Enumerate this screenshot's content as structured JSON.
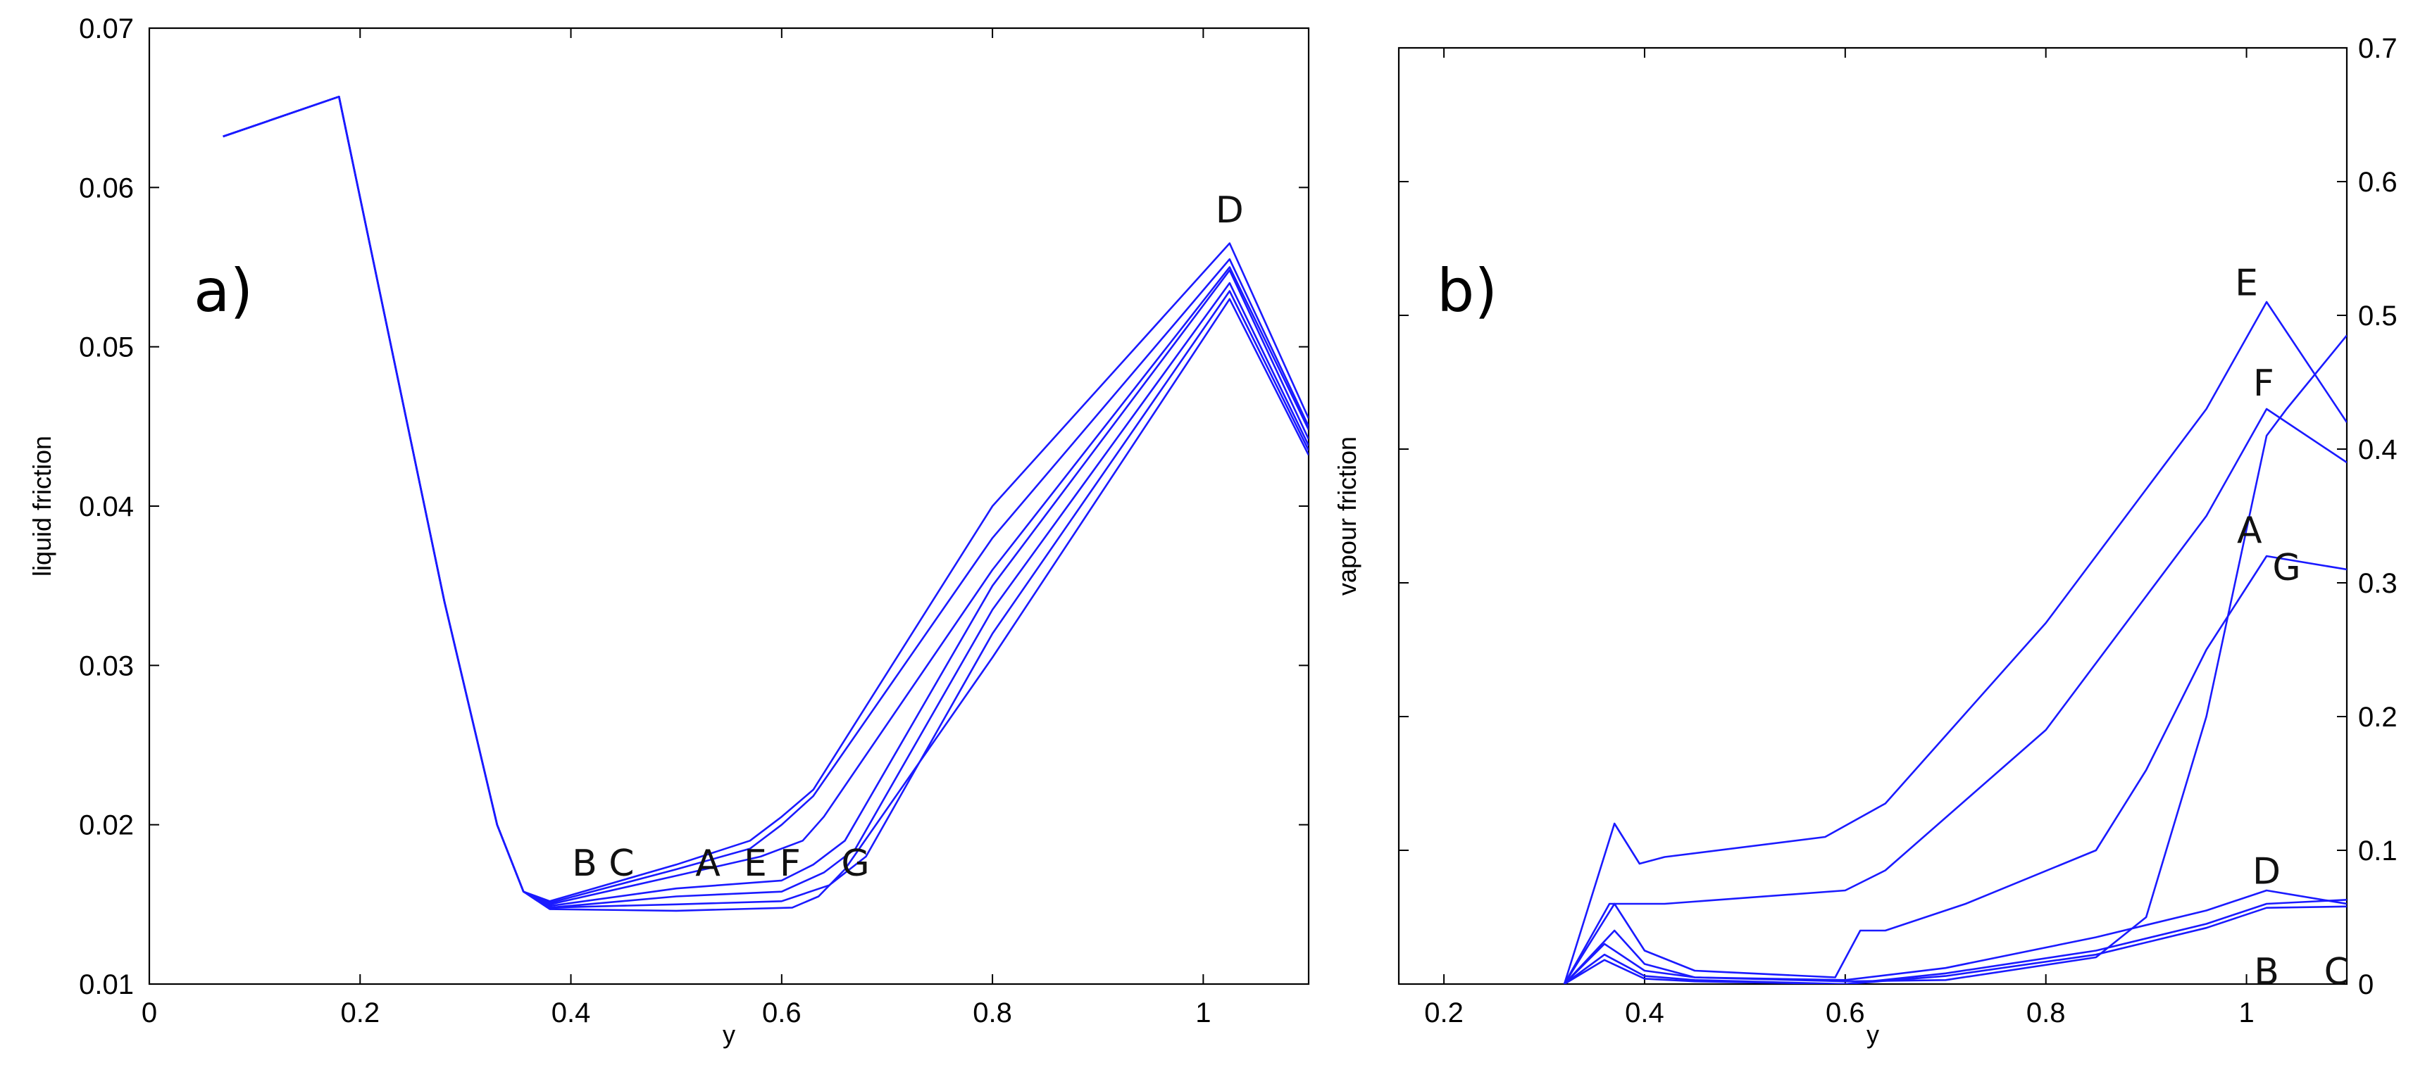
{
  "colors": {
    "series": "#1a1aff",
    "axes": "#000000",
    "background": "#ffffff"
  },
  "chart_data": [
    {
      "type": "line",
      "panel_label": "a)",
      "xlabel": "y",
      "ylabel": "liquid friction",
      "xlim": [
        0,
        1.1
      ],
      "ylim": [
        0.01,
        0.07
      ],
      "xticks": [
        "0",
        "0.2",
        "0.4",
        "0.6",
        "0.8",
        "1"
      ],
      "yticks": [
        "0.01",
        "0.02",
        "0.03",
        "0.04",
        "0.05",
        "0.06",
        "0.07"
      ],
      "y_axis_side": "left",
      "grid": false,
      "legend": "none",
      "curve_labels": [
        {
          "text": "B",
          "x": 0.413,
          "y": 0.0168
        },
        {
          "text": "C",
          "x": 0.448,
          "y": 0.0168
        },
        {
          "text": "A",
          "x": 0.53,
          "y": 0.0168
        },
        {
          "text": "E",
          "x": 0.575,
          "y": 0.0168
        },
        {
          "text": "F",
          "x": 0.608,
          "y": 0.0168
        },
        {
          "text": "G",
          "x": 0.67,
          "y": 0.0168
        },
        {
          "text": "D",
          "x": 1.025,
          "y": 0.0578
        }
      ],
      "series": [
        {
          "x": [
            0.07,
            0.18,
            0.28,
            0.33,
            0.355,
            0.38,
            0.5,
            0.57,
            0.6,
            0.63,
            0.8,
            1.025,
            1.1
          ],
          "y": [
            0.0632,
            0.0657,
            0.034,
            0.02,
            0.0158,
            0.0152,
            0.0175,
            0.019,
            0.0205,
            0.0222,
            0.04,
            0.0565,
            0.0455
          ]
        },
        {
          "x": [
            0.07,
            0.18,
            0.28,
            0.33,
            0.355,
            0.38,
            0.5,
            0.57,
            0.6,
            0.63,
            0.8,
            1.025,
            1.1
          ],
          "y": [
            0.0632,
            0.0657,
            0.034,
            0.02,
            0.0158,
            0.0151,
            0.0172,
            0.0185,
            0.02,
            0.0218,
            0.038,
            0.0555,
            0.045
          ]
        },
        {
          "x": [
            0.07,
            0.18,
            0.28,
            0.33,
            0.355,
            0.38,
            0.5,
            0.58,
            0.62,
            0.64,
            0.8,
            1.025,
            1.1
          ],
          "y": [
            0.0632,
            0.0657,
            0.034,
            0.02,
            0.0158,
            0.015,
            0.0168,
            0.018,
            0.019,
            0.0205,
            0.036,
            0.055,
            0.0448
          ]
        },
        {
          "x": [
            0.07,
            0.18,
            0.28,
            0.33,
            0.355,
            0.38,
            0.5,
            0.6,
            0.63,
            0.66,
            0.8,
            1.025,
            1.1
          ],
          "y": [
            0.0632,
            0.0657,
            0.034,
            0.02,
            0.0158,
            0.0149,
            0.016,
            0.0165,
            0.0175,
            0.019,
            0.035,
            0.0548,
            0.0442
          ]
        },
        {
          "x": [
            0.07,
            0.18,
            0.28,
            0.33,
            0.355,
            0.38,
            0.5,
            0.6,
            0.64,
            0.67,
            0.8,
            1.025,
            1.1
          ],
          "y": [
            0.0632,
            0.0657,
            0.034,
            0.02,
            0.0158,
            0.0148,
            0.0155,
            0.0158,
            0.017,
            0.0185,
            0.0335,
            0.054,
            0.0438
          ]
        },
        {
          "x": [
            0.07,
            0.18,
            0.28,
            0.33,
            0.355,
            0.38,
            0.5,
            0.6,
            0.645,
            0.68,
            0.8,
            1.025,
            1.1
          ],
          "y": [
            0.0632,
            0.0657,
            0.034,
            0.02,
            0.0158,
            0.0148,
            0.015,
            0.0152,
            0.0162,
            0.018,
            0.032,
            0.0535,
            0.0435
          ]
        },
        {
          "x": [
            0.07,
            0.18,
            0.28,
            0.33,
            0.355,
            0.38,
            0.5,
            0.61,
            0.635,
            0.66,
            0.8,
            1.025,
            1.1
          ],
          "y": [
            0.0632,
            0.0657,
            0.034,
            0.02,
            0.0158,
            0.0147,
            0.0146,
            0.0148,
            0.0155,
            0.0172,
            0.0305,
            0.053,
            0.0432
          ]
        }
      ]
    },
    {
      "type": "line",
      "panel_label": "b)",
      "xlabel": "y",
      "ylabel": "vapour friction",
      "xlim": [
        0.155,
        1.1
      ],
      "ylim": [
        0,
        0.7
      ],
      "xticks": [
        "0.2",
        "0.4",
        "0.6",
        "0.8",
        "1"
      ],
      "yticks": [
        "0",
        "0.1",
        "0.2",
        "0.3",
        "0.4",
        "0.5",
        "0.6",
        "0.7"
      ],
      "y_axis_side": "right",
      "grid": false,
      "legend": "none",
      "curve_labels": [
        {
          "text": "E",
          "x": 1.0,
          "y": 0.515
        },
        {
          "text": "F",
          "x": 1.017,
          "y": 0.44
        },
        {
          "text": "A",
          "x": 1.003,
          "y": 0.33
        },
        {
          "text": "G",
          "x": 1.04,
          "y": 0.302
        },
        {
          "text": "D",
          "x": 1.02,
          "y": 0.075
        },
        {
          "text": "B",
          "x": 1.02,
          "y": 0.0
        },
        {
          "text": "C",
          "x": 1.09,
          "y": 0.0
        }
      ],
      "series": [
        {
          "x": [
            0.32,
            0.37,
            0.395,
            0.42,
            0.58,
            0.64,
            0.8,
            0.96,
            1.02,
            1.1
          ],
          "y": [
            0,
            0.12,
            0.09,
            0.095,
            0.11,
            0.135,
            0.27,
            0.43,
            0.51,
            0.42
          ]
        },
        {
          "x": [
            0.32,
            0.365,
            0.39,
            0.42,
            0.6,
            0.64,
            0.8,
            0.96,
            1.02,
            1.1
          ],
          "y": [
            0,
            0.06,
            0.06,
            0.06,
            0.07,
            0.085,
            0.19,
            0.35,
            0.43,
            0.39
          ]
        },
        {
          "x": [
            0.32,
            0.36,
            0.4,
            0.45,
            0.6,
            0.7,
            0.85,
            0.96,
            1.02,
            1.1
          ],
          "y": [
            0,
            0.03,
            0.01,
            0.005,
            0.003,
            0.012,
            0.035,
            0.055,
            0.07,
            0.06
          ]
        },
        {
          "x": [
            0.32,
            0.36,
            0.4,
            0.45,
            0.6,
            0.7,
            0.85,
            0.96,
            1.02,
            1.1
          ],
          "y": [
            0,
            0.022,
            0.006,
            0.003,
            0.0,
            0.008,
            0.025,
            0.045,
            0.06,
            0.063
          ]
        },
        {
          "x": [
            0.32,
            0.36,
            0.4,
            0.45,
            0.6,
            0.7,
            0.85,
            0.96,
            1.02,
            1.1
          ],
          "y": [
            0,
            0.018,
            0.004,
            0.002,
            0.0,
            0.006,
            0.022,
            0.042,
            0.057,
            0.058
          ]
        },
        {
          "x": [
            0.32,
            0.37,
            0.4,
            0.45,
            0.59,
            0.615,
            0.64,
            0.72,
            0.85,
            0.9,
            0.96,
            1.02,
            1.1
          ],
          "y": [
            0,
            0.06,
            0.025,
            0.01,
            0.005,
            0.04,
            0.04,
            0.06,
            0.1,
            0.16,
            0.25,
            0.32,
            0.31
          ]
        },
        {
          "x": [
            0.32,
            0.37,
            0.4,
            0.45,
            0.6,
            0.7,
            0.85,
            0.9,
            0.96,
            1.02,
            1.04,
            1.1
          ],
          "y": [
            0,
            0.04,
            0.015,
            0.005,
            0.002,
            0.003,
            0.02,
            0.05,
            0.2,
            0.41,
            0.43,
            0.485
          ]
        }
      ]
    }
  ]
}
